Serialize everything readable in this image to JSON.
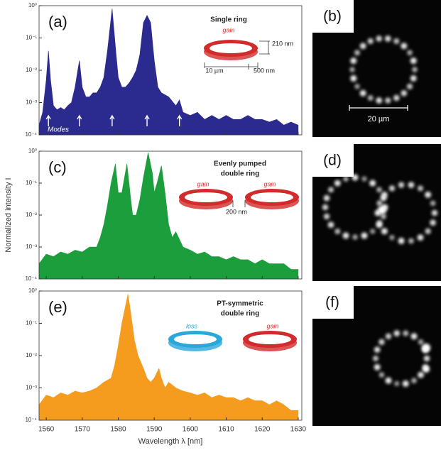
{
  "chart_data": [
    {
      "type": "area",
      "panel_label": "(a)",
      "color": "#2b2a8e",
      "log_y": true,
      "xlim": [
        1558,
        1631
      ],
      "xticks": [
        1560,
        1570,
        1580,
        1590,
        1600,
        1610,
        1620,
        1630
      ],
      "ylim": [
        0.0001,
        1
      ],
      "yticks": [
        {
          "value": 0.0001,
          "label": "10⁻⁴"
        },
        {
          "value": 0.001,
          "label": "10⁻³"
        },
        {
          "value": 0.01,
          "label": "10⁻²"
        },
        {
          "value": 0.1,
          "label": "10⁻¹"
        },
        {
          "value": 1,
          "label": "10⁰"
        }
      ],
      "annotations": [
        "Single ring",
        "gain",
        "210 nm",
        "10 µm",
        "500 nm"
      ],
      "modes": {
        "label": "Modes",
        "x": [
          1560.6,
          1569.2,
          1578.3,
          1588,
          1597
        ]
      },
      "x": [
        1558,
        1559,
        1560,
        1560.6,
        1561.2,
        1562,
        1563,
        1564,
        1565,
        1566,
        1567,
        1568,
        1569.2,
        1570,
        1571,
        1572,
        1573,
        1574,
        1575,
        1576,
        1577,
        1578.3,
        1579.3,
        1580,
        1581,
        1582,
        1583,
        1584,
        1585,
        1586,
        1587,
        1588,
        1589,
        1590,
        1591,
        1592,
        1594,
        1596,
        1597,
        1598,
        1600,
        1602,
        1604,
        1606,
        1608,
        1610,
        1612,
        1614,
        1616,
        1618,
        1620,
        1622,
        1624,
        1626,
        1628,
        1630
      ],
      "values": [
        0.0002,
        0.0005,
        0.005,
        0.04,
        0.005,
        0.0008,
        0.0006,
        0.0007,
        0.0006,
        0.0008,
        0.001,
        0.003,
        0.02,
        0.003,
        0.0015,
        0.0015,
        0.002,
        0.002,
        0.003,
        0.006,
        0.04,
        0.8,
        0.04,
        0.006,
        0.003,
        0.003,
        0.004,
        0.006,
        0.01,
        0.03,
        0.3,
        0.5,
        0.3,
        0.02,
        0.003,
        0.002,
        0.0015,
        0.0008,
        0.0012,
        0.0005,
        0.0004,
        0.0005,
        0.0003,
        0.0004,
        0.0003,
        0.0004,
        0.0003,
        0.0003,
        0.0004,
        0.0003,
        0.0003,
        0.00025,
        0.0003,
        0.0002,
        0.00025,
        0.0002
      ]
    },
    {
      "type": "area",
      "panel_label": "(c)",
      "color": "#1c9e3c",
      "log_y": true,
      "y_label": "Normalized intensity I",
      "xlim": [
        1558,
        1631
      ],
      "xticks": [
        1560,
        1570,
        1580,
        1590,
        1600,
        1610,
        1620,
        1630
      ],
      "ylim": [
        0.0001,
        1
      ],
      "yticks": [
        {
          "value": 0.0001,
          "label": "10⁻⁴"
        },
        {
          "value": 0.001,
          "label": "10⁻³"
        },
        {
          "value": 0.01,
          "label": "10⁻²"
        },
        {
          "value": 0.1,
          "label": "10⁻¹"
        },
        {
          "value": 1,
          "label": "10⁰"
        }
      ],
      "annotations": [
        "Evenly pumped",
        "double ring",
        "gain",
        "gain",
        "200 nm"
      ],
      "x": [
        1558,
        1560,
        1562,
        1564,
        1566,
        1568,
        1570,
        1572,
        1574,
        1575,
        1576,
        1577,
        1578,
        1579.2,
        1580,
        1581,
        1582.4,
        1583.5,
        1584,
        1585,
        1586,
        1587,
        1588.3,
        1589.5,
        1590,
        1590.8,
        1592,
        1593,
        1594,
        1595,
        1596,
        1598,
        1600,
        1602,
        1604,
        1606,
        1608,
        1610,
        1612,
        1614,
        1616,
        1618,
        1620,
        1622,
        1624,
        1626,
        1628,
        1630
      ],
      "values": [
        0.0003,
        0.0006,
        0.0005,
        0.0007,
        0.0006,
        0.0008,
        0.0007,
        0.001,
        0.001,
        0.002,
        0.005,
        0.02,
        0.1,
        0.4,
        0.05,
        0.05,
        0.4,
        0.03,
        0.01,
        0.01,
        0.03,
        0.15,
        0.9,
        0.2,
        0.05,
        0.1,
        0.35,
        0.05,
        0.005,
        0.002,
        0.003,
        0.001,
        0.0008,
        0.0006,
        0.0007,
        0.0005,
        0.0005,
        0.0004,
        0.0005,
        0.0004,
        0.0004,
        0.0003,
        0.0004,
        0.0003,
        0.0003,
        0.0003,
        0.0002,
        0.0002
      ]
    },
    {
      "type": "area",
      "panel_label": "(e)",
      "color": "#f59b1e",
      "log_y": true,
      "x_label": "Wavelength λ [nm]",
      "xlim": [
        1558,
        1631
      ],
      "xticks": [
        1560,
        1570,
        1580,
        1590,
        1600,
        1610,
        1620,
        1630
      ],
      "ylim": [
        0.0001,
        1
      ],
      "yticks": [
        {
          "value": 0.0001,
          "label": "10⁻⁴"
        },
        {
          "value": 0.001,
          "label": "10⁻³"
        },
        {
          "value": 0.01,
          "label": "10⁻²"
        },
        {
          "value": 0.1,
          "label": "10⁻¹"
        },
        {
          "value": 1,
          "label": "10⁰"
        }
      ],
      "annotations": [
        "PT-symmetric",
        "double ring",
        "loss",
        "gain"
      ],
      "x": [
        1558,
        1560,
        1562,
        1564,
        1566,
        1568,
        1570,
        1572,
        1574,
        1576,
        1578,
        1579,
        1580,
        1581,
        1582.7,
        1583.5,
        1584.5,
        1585.5,
        1587,
        1588,
        1589,
        1590,
        1591.3,
        1592,
        1593,
        1594,
        1596,
        1598,
        1600,
        1602,
        1604,
        1606,
        1608,
        1610,
        1612,
        1614,
        1616,
        1618,
        1620,
        1622,
        1624,
        1626,
        1628,
        1630
      ],
      "values": [
        0.0003,
        0.0006,
        0.0005,
        0.0007,
        0.0006,
        0.0008,
        0.0007,
        0.0008,
        0.001,
        0.0015,
        0.002,
        0.005,
        0.02,
        0.1,
        0.8,
        0.2,
        0.03,
        0.01,
        0.004,
        0.002,
        0.0015,
        0.002,
        0.004,
        0.002,
        0.001,
        0.0015,
        0.001,
        0.0008,
        0.0007,
        0.0006,
        0.0007,
        0.0005,
        0.0006,
        0.0005,
        0.0005,
        0.0004,
        0.0005,
        0.0004,
        0.0004,
        0.0003,
        0.0004,
        0.0003,
        0.0002,
        0.0002
      ]
    }
  ],
  "images": [
    {
      "label": "(b)",
      "scale_label": "20 µm"
    },
    {
      "label": "(d)"
    },
    {
      "label": "(f)"
    }
  ]
}
